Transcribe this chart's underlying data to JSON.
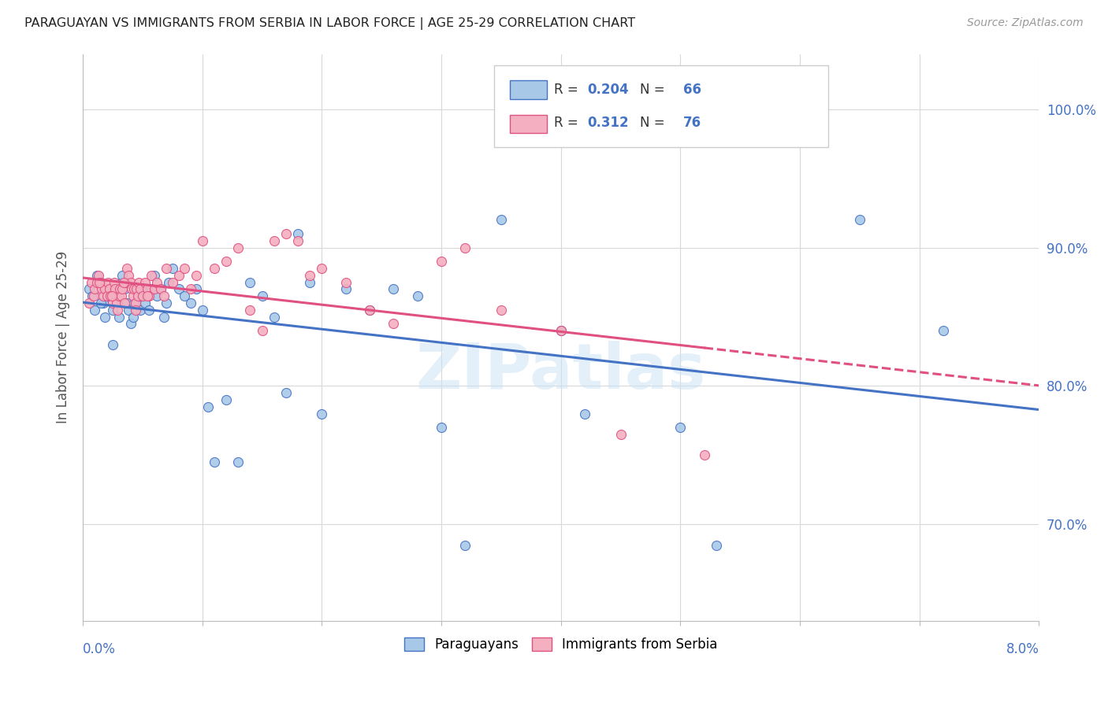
{
  "title": "PARAGUAYAN VS IMMIGRANTS FROM SERBIA IN LABOR FORCE | AGE 25-29 CORRELATION CHART",
  "source": "Source: ZipAtlas.com",
  "ylabel": "In Labor Force | Age 25-29",
  "legend_label1": "Paraguayans",
  "legend_label2": "Immigrants from Serbia",
  "R1": "0.204",
  "N1": "66",
  "R2": "0.312",
  "N2": "76",
  "color1": "#a8c8e8",
  "color2": "#f4b0c0",
  "trendline1_color": "#4472c4",
  "trendline2_color": "#e05080",
  "xlim": [
    0.0,
    8.0
  ],
  "ylim": [
    63.0,
    104.0
  ],
  "yticks": [
    70.0,
    80.0,
    90.0,
    100.0
  ],
  "paraguayan_x": [
    0.05,
    0.08,
    0.1,
    0.12,
    0.15,
    0.17,
    0.18,
    0.2,
    0.22,
    0.25,
    0.27,
    0.28,
    0.3,
    0.32,
    0.33,
    0.35,
    0.37,
    0.38,
    0.4,
    0.42,
    0.43,
    0.45,
    0.47,
    0.48,
    0.5,
    0.52,
    0.55,
    0.57,
    0.6,
    0.62,
    0.65,
    0.68,
    0.7,
    0.72,
    0.75,
    0.8,
    0.85,
    0.9,
    0.95,
    1.0,
    1.05,
    1.1,
    1.2,
    1.3,
    1.4,
    1.5,
    1.6,
    1.7,
    1.8,
    1.9,
    2.0,
    2.2,
    2.4,
    2.6,
    2.8,
    3.0,
    3.2,
    3.5,
    4.0,
    4.2,
    5.0,
    5.3,
    6.5,
    7.2,
    0.15,
    0.25
  ],
  "paraguayan_y": [
    87.0,
    86.5,
    85.5,
    88.0,
    87.5,
    86.0,
    85.0,
    87.0,
    86.5,
    85.5,
    87.0,
    86.0,
    85.0,
    87.5,
    88.0,
    87.0,
    86.0,
    85.5,
    84.5,
    85.0,
    86.0,
    87.0,
    86.5,
    85.5,
    87.0,
    86.0,
    85.5,
    87.0,
    88.0,
    86.5,
    87.0,
    85.0,
    86.0,
    87.5,
    88.5,
    87.0,
    86.5,
    86.0,
    87.0,
    85.5,
    78.5,
    74.5,
    79.0,
    74.5,
    87.5,
    86.5,
    85.0,
    79.5,
    91.0,
    87.5,
    78.0,
    87.0,
    85.5,
    87.0,
    86.5,
    77.0,
    68.5,
    92.0,
    84.0,
    78.0,
    77.0,
    68.5,
    92.0,
    84.0,
    86.0,
    83.0
  ],
  "serbia_x": [
    0.05,
    0.07,
    0.09,
    0.1,
    0.12,
    0.13,
    0.15,
    0.16,
    0.17,
    0.18,
    0.2,
    0.21,
    0.22,
    0.23,
    0.25,
    0.26,
    0.27,
    0.28,
    0.29,
    0.3,
    0.31,
    0.32,
    0.33,
    0.35,
    0.36,
    0.37,
    0.38,
    0.4,
    0.41,
    0.42,
    0.43,
    0.44,
    0.45,
    0.46,
    0.47,
    0.48,
    0.5,
    0.52,
    0.54,
    0.55,
    0.57,
    0.6,
    0.62,
    0.65,
    0.68,
    0.7,
    0.75,
    0.8,
    0.85,
    0.9,
    0.95,
    1.0,
    1.1,
    1.2,
    1.3,
    1.4,
    1.5,
    1.6,
    1.7,
    1.8,
    1.9,
    2.0,
    2.2,
    2.4,
    2.6,
    3.0,
    3.2,
    3.5,
    4.0,
    4.5,
    5.2,
    0.14,
    0.24,
    0.34,
    0.44,
    0.54
  ],
  "serbia_y": [
    86.0,
    87.5,
    86.5,
    87.0,
    87.5,
    88.0,
    87.5,
    87.0,
    86.5,
    87.0,
    86.5,
    87.5,
    87.0,
    86.5,
    86.0,
    87.5,
    87.0,
    86.0,
    85.5,
    86.5,
    87.0,
    86.5,
    87.0,
    86.0,
    87.5,
    88.5,
    88.0,
    87.5,
    87.0,
    86.5,
    87.0,
    86.0,
    87.0,
    86.5,
    87.5,
    87.0,
    86.5,
    87.5,
    87.0,
    86.5,
    88.0,
    87.0,
    87.5,
    87.0,
    86.5,
    88.5,
    87.5,
    88.0,
    88.5,
    87.0,
    88.0,
    90.5,
    88.5,
    89.0,
    90.0,
    85.5,
    84.0,
    90.5,
    91.0,
    90.5,
    88.0,
    88.5,
    87.5,
    85.5,
    84.5,
    89.0,
    90.0,
    85.5,
    84.0,
    76.5,
    75.0,
    87.5,
    86.5,
    87.5,
    85.5,
    86.5
  ]
}
